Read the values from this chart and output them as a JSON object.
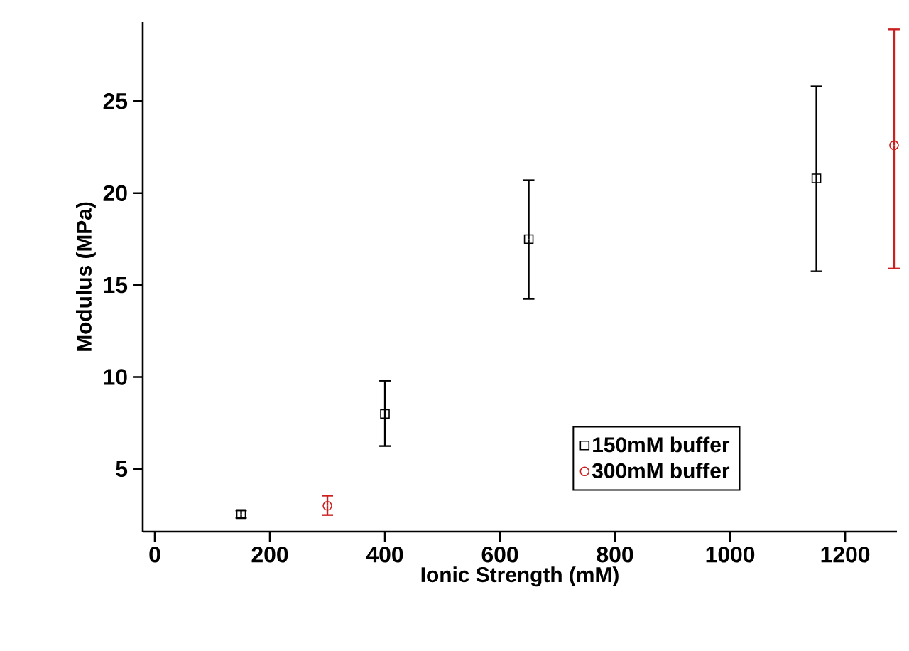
{
  "chart_data": {
    "type": "scatter",
    "xlabel": "Ionic Strength (mM)",
    "ylabel": "Modulus (MPa)",
    "xlim": [
      -21,
      1290
    ],
    "ylim": [
      1.6,
      29.3
    ],
    "xticks": [
      0,
      200,
      400,
      600,
      800,
      1000,
      1200
    ],
    "yticks": [
      5,
      10,
      15,
      20,
      25
    ],
    "grid": false,
    "legend": "bottom right",
    "series": [
      {
        "name": "150mM buffer",
        "color": "#000000",
        "marker": "square",
        "x": [
          150,
          400,
          650,
          1150
        ],
        "values": [
          2.55,
          8.0,
          17.5,
          20.8
        ],
        "errors": [
          0.2,
          [
            6.25,
            9.8
          ],
          [
            14.25,
            20.7
          ],
          [
            15.75,
            25.8
          ]
        ]
      },
      {
        "name": "300mM buffer",
        "color": "#cc1f1f",
        "marker": "circle",
        "x": [
          300,
          1285
        ],
        "values": [
          3.0,
          22.6
        ],
        "errors": [
          [
            2.5,
            3.55
          ],
          [
            15.9,
            28.9
          ]
        ]
      }
    ]
  }
}
